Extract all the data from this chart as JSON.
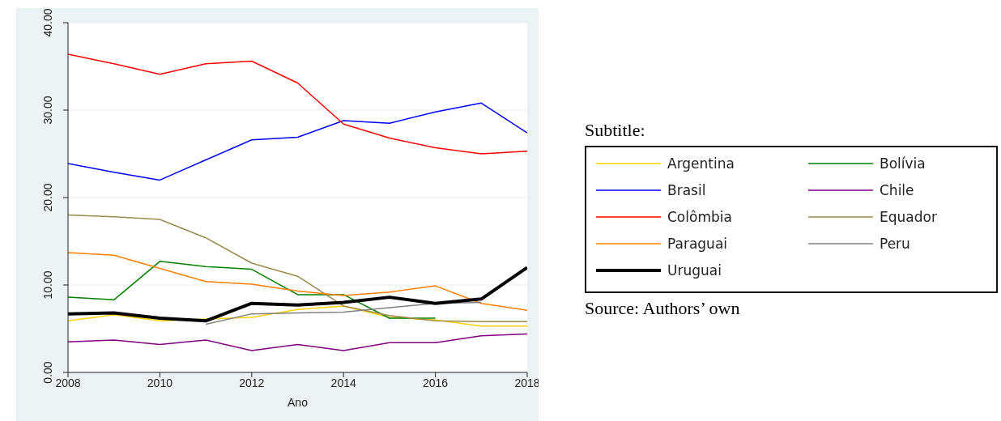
{
  "chart_data": {
    "type": "line",
    "xlabel": "Ano",
    "legend_title": "Subtitle:",
    "annotations": [
      "Source: Authors’ own"
    ],
    "x": [
      2008,
      2009,
      2010,
      2011,
      2012,
      2013,
      2014,
      2015,
      2016,
      2017,
      2018
    ],
    "xlim": [
      2008,
      2018
    ],
    "xticks": [
      2008,
      2010,
      2012,
      2014,
      2016,
      2018
    ],
    "ylim": [
      0,
      40
    ],
    "yticks": [
      {
        "value": 0,
        "label": "0.00"
      },
      {
        "value": 10,
        "label": "10.00"
      },
      {
        "value": 20,
        "label": "20.00"
      },
      {
        "value": 30,
        "label": "30.00"
      },
      {
        "value": 40,
        "label": "40.00"
      }
    ],
    "grid": "y",
    "legend": "right",
    "marker": "none",
    "line_style": "solid",
    "series": [
      {
        "name": "Argentina",
        "color": "#ffd000",
        "values": [
          5.9,
          6.6,
          5.9,
          null,
          6.3,
          7.2,
          7.6,
          6.3,
          6.0,
          5.3,
          5.3
        ]
      },
      {
        "name": "Bolívia",
        "color": "#008000",
        "values": [
          8.6,
          8.3,
          12.7,
          12.1,
          11.8,
          8.9,
          8.9,
          6.2,
          6.2,
          null,
          null
        ]
      },
      {
        "name": "Brasil",
        "color": "#0000ff",
        "values": [
          23.9,
          22.9,
          22.0,
          24.3,
          26.6,
          26.9,
          28.8,
          28.5,
          29.8,
          30.8,
          27.4
        ]
      },
      {
        "name": "Chile",
        "color": "#800080",
        "values": [
          3.5,
          3.7,
          3.2,
          3.7,
          2.5,
          3.2,
          2.5,
          3.4,
          3.4,
          4.2,
          4.4
        ]
      },
      {
        "name": "Colômbia",
        "color": "#ff0000",
        "values": [
          36.4,
          35.3,
          34.1,
          35.3,
          35.6,
          33.1,
          28.4,
          26.8,
          25.7,
          25.0,
          25.3
        ]
      },
      {
        "name": "Equador",
        "color": "#9c8a4d",
        "values": [
          18.0,
          17.8,
          17.5,
          15.4,
          12.5,
          11.0,
          7.6,
          6.5,
          5.9,
          5.8,
          5.8
        ]
      },
      {
        "name": "Paraguai",
        "color": "#ff7f00",
        "values": [
          13.7,
          13.4,
          11.9,
          10.4,
          10.1,
          9.3,
          8.8,
          9.2,
          9.9,
          7.9,
          7.1
        ]
      },
      {
        "name": "Peru",
        "color": "#808080",
        "values": [
          null,
          null,
          null,
          5.5,
          6.7,
          6.8,
          6.9,
          7.4,
          7.9,
          8.0,
          null
        ]
      },
      {
        "name": "Uruguai",
        "color": "#000000",
        "values": [
          6.7,
          6.8,
          6.2,
          5.9,
          7.9,
          7.7,
          8.0,
          8.6,
          7.9,
          8.4,
          12.0
        ]
      }
    ]
  }
}
